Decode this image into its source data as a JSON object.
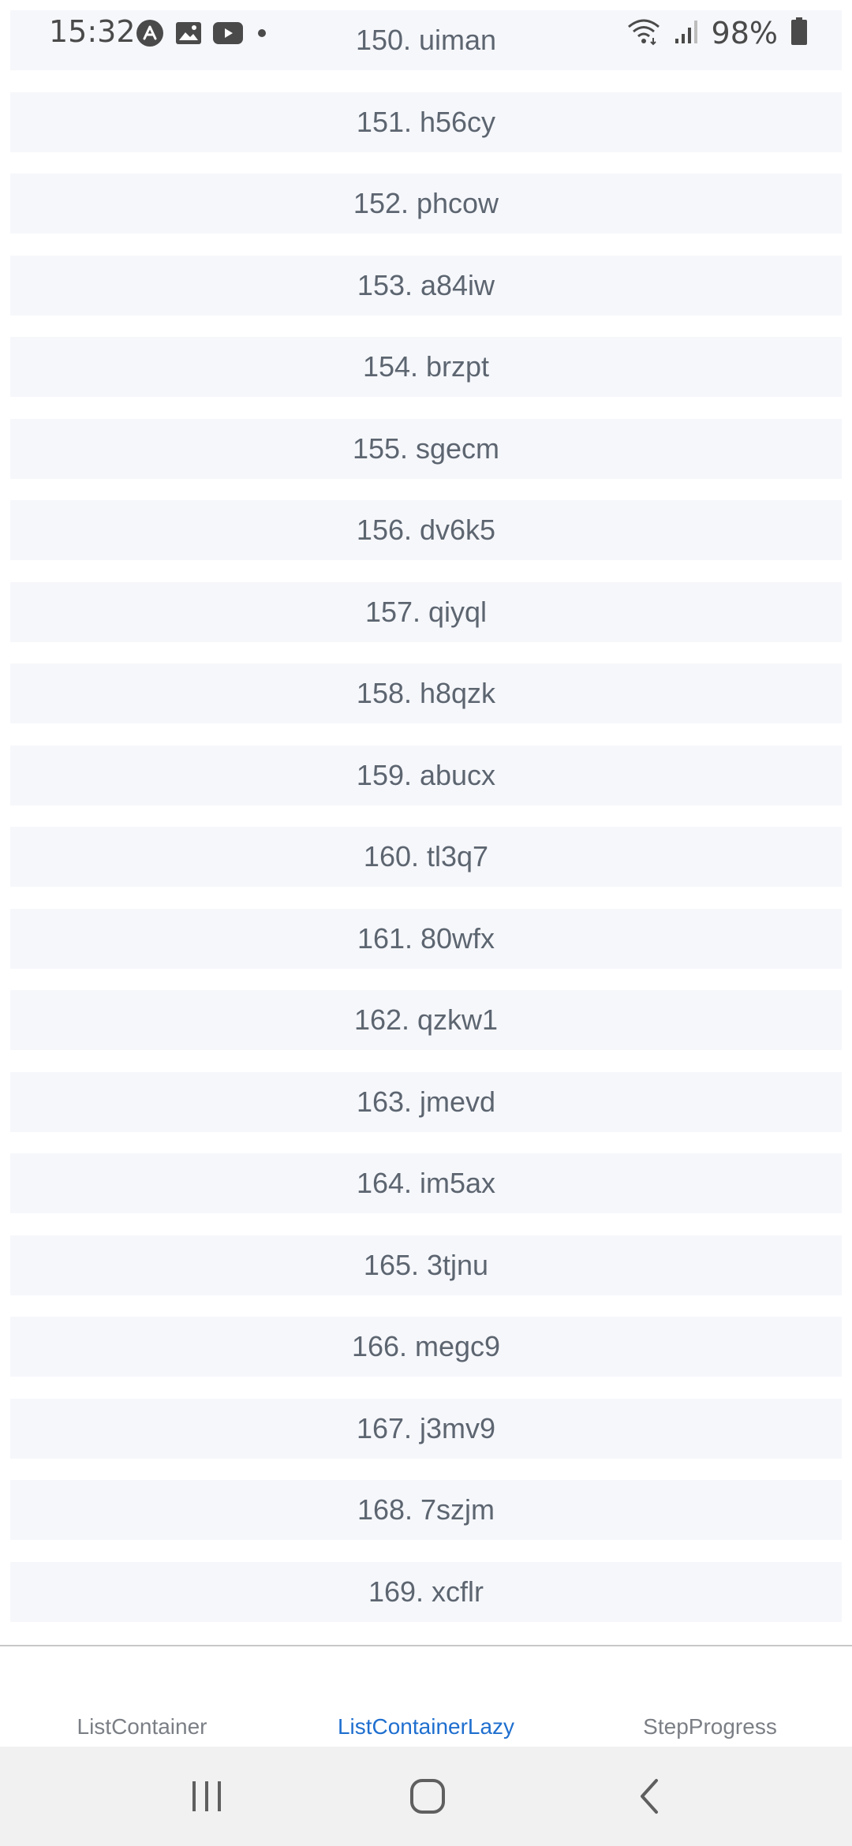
{
  "status_bar": {
    "time": "15:32",
    "battery": "98%",
    "left_icons": [
      "app-a-icon",
      "gallery-icon",
      "youtube-icon",
      "dot-icon"
    ],
    "right_icons": [
      "wifi-icon",
      "signal-icon",
      "battery-icon"
    ]
  },
  "list": {
    "items": [
      {
        "label": "150. uiman"
      },
      {
        "label": "151. h56cy"
      },
      {
        "label": "152. phcow"
      },
      {
        "label": "153. a84iw"
      },
      {
        "label": "154. brzpt"
      },
      {
        "label": "155. sgecm"
      },
      {
        "label": "156. dv6k5"
      },
      {
        "label": "157. qiyql"
      },
      {
        "label": "158. h8qzk"
      },
      {
        "label": "159. abucx"
      },
      {
        "label": "160. tl3q7"
      },
      {
        "label": "161. 80wfx"
      },
      {
        "label": "162. qzkw1"
      },
      {
        "label": "163. jmevd"
      },
      {
        "label": "164. im5ax"
      },
      {
        "label": "165. 3tjnu"
      },
      {
        "label": "166. megc9"
      },
      {
        "label": "167. j3mv9"
      },
      {
        "label": "168. 7szjm"
      },
      {
        "label": "169. xcflr"
      }
    ]
  },
  "tabs": [
    {
      "label": "ListContainer",
      "active": false
    },
    {
      "label": "ListContainerLazy",
      "active": true
    },
    {
      "label": "StepProgress",
      "active": false
    }
  ],
  "nav_bar": {
    "buttons": [
      "recent-apps-icon",
      "home-icon",
      "back-icon"
    ]
  },
  "colors": {
    "item_bg": "#f6f7fb",
    "item_text": "#5c6570",
    "tab_active": "#1f6fcf",
    "tab_inactive": "#7b7f85",
    "nav_bg": "#f1f1f1"
  }
}
